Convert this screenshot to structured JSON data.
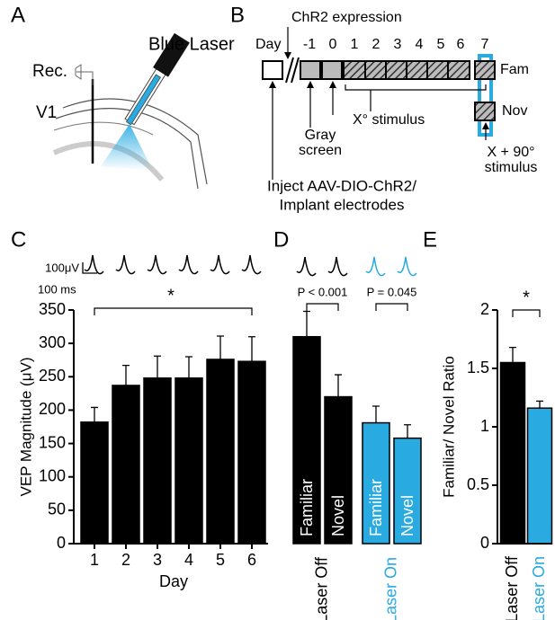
{
  "panel_labels": [
    "A",
    "B",
    "C",
    "D",
    "E"
  ],
  "panel_a": {
    "laser": "Blue Laser",
    "recording": "Rec.",
    "region": "V1"
  },
  "panel_b": {
    "expression": "ChR2 expression",
    "day": "Day",
    "days": [
      "-1",
      "0",
      "1",
      "2",
      "3",
      "4",
      "5",
      "6",
      "7"
    ],
    "familiar": "Fam",
    "novel": "Nov",
    "gray_screen": [
      "Gray",
      "screen"
    ],
    "stimulus": "X° stimulus",
    "novel_stimulus": [
      "X + 90°",
      "stimulus"
    ],
    "injection": [
      "Inject AAV-DIO-ChR2/",
      "Implant electrodes"
    ]
  },
  "chart_data": [
    {
      "type": "bar",
      "categories": [
        "1",
        "2",
        "3",
        "4",
        "5",
        "6"
      ],
      "values": [
        182,
        237,
        248,
        248,
        276,
        273
      ],
      "errors": [
        22,
        30,
        33,
        32,
        35,
        37
      ],
      "color": "#000000",
      "ylabel": "VEP Magnitude (μV)",
      "xlabel": "Day",
      "ylim": [
        0,
        350
      ],
      "yticks": [
        0,
        50,
        100,
        150,
        200,
        250,
        300,
        350
      ],
      "scale_bar": [
        "100μV",
        "100 ms"
      ],
      "annotation": "*"
    },
    {
      "type": "bar",
      "categories": [
        "Familiar",
        "Novel",
        "Familiar",
        "Novel"
      ],
      "values": [
        310,
        220,
        181,
        158
      ],
      "errors": [
        38,
        33,
        25,
        20
      ],
      "colors": [
        "#000000",
        "#000000",
        "#29abe2",
        "#29abe2"
      ],
      "ylim": [
        0,
        350
      ],
      "groups": [
        "Laser Off",
        "Laser On"
      ],
      "group_colors": [
        "#000000",
        "#29abe2"
      ],
      "comparisons": [
        "P < 0.001",
        "P = 0.045"
      ]
    },
    {
      "type": "bar",
      "categories": [
        "Laser Off",
        "Laser On"
      ],
      "values": [
        1.55,
        1.16
      ],
      "errors": [
        0.13,
        0.06
      ],
      "colors": [
        "#000000",
        "#29abe2"
      ],
      "ylabel": "Familiar/ Novel Ratio",
      "ylim": [
        0,
        2
      ],
      "yticks": [
        0,
        0.5,
        1,
        1.5,
        2
      ],
      "annotation": "*"
    }
  ]
}
